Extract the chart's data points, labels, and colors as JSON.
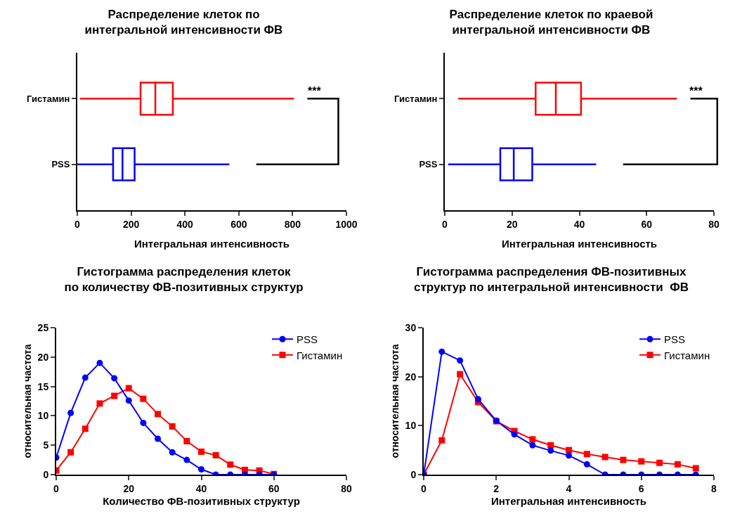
{
  "chart_data": [
    {
      "type": "box",
      "title": "Распределение клеток по интегральной интенсивности ФВ",
      "xlabel": "Интегральная интенсивность",
      "orientation": "horizontal",
      "categories": [
        "Гистамин",
        "PSS"
      ],
      "colors": [
        "#ff0000",
        "#0000ff"
      ],
      "boxes": [
        {
          "low": 10,
          "q1": 235,
          "median": 290,
          "q3": 355,
          "high": 805
        },
        {
          "low": 0,
          "q1": 133,
          "median": 168,
          "q3": 213,
          "high": 565
        }
      ],
      "xlim": [
        0,
        1000
      ],
      "xticks": [
        0,
        200,
        400,
        600,
        800,
        1000
      ],
      "grid": false,
      "legend": false,
      "annotations": [
        "***"
      ]
    },
    {
      "type": "box",
      "title": "Распределение клеток по краевой интегральной интенсивности ФВ",
      "xlabel": "Интегральная интенсивность",
      "orientation": "horizontal",
      "categories": [
        "Гистамин",
        "PSS"
      ],
      "colors": [
        "#ff0000",
        "#0000ff"
      ],
      "boxes": [
        {
          "low": 4,
          "q1": 27,
          "median": 33,
          "q3": 40.5,
          "high": 69
        },
        {
          "low": 1,
          "q1": 16.5,
          "median": 20.5,
          "q3": 26,
          "high": 45
        }
      ],
      "xlim": [
        0,
        80
      ],
      "xticks": [
        0,
        20,
        40,
        60,
        80
      ],
      "grid": false,
      "legend": false,
      "annotations": [
        "***"
      ]
    },
    {
      "type": "line",
      "title": "Гистограмма распределения клеток по количеству ФВ-позитивных структур",
      "xlabel": "Количество ФВ-позитивных структур",
      "ylabel": "относительная частота",
      "x": [
        0,
        4,
        8,
        12,
        16,
        20,
        24,
        28,
        32,
        36,
        40,
        44,
        48,
        52,
        56,
        60
      ],
      "series": [
        {
          "name": "PSS",
          "color": "#0000ff",
          "marker": "circle",
          "values": [
            2.9,
            10.5,
            16.5,
            19,
            16.4,
            12.6,
            8.8,
            6.1,
            3.8,
            2.5,
            0.9,
            0,
            0,
            0,
            0,
            0
          ]
        },
        {
          "name": "Гистамин",
          "color": "#ff0000",
          "marker": "square",
          "values": [
            0.7,
            3.8,
            7.8,
            12.1,
            13.4,
            14.7,
            12.9,
            10.3,
            8.2,
            5.7,
            3.9,
            3.3,
            1.7,
            0.8,
            0.7,
            0.1
          ]
        }
      ],
      "xlim": [
        0,
        80
      ],
      "xticks": [
        0,
        20,
        40,
        60,
        80
      ],
      "ylim": [
        0,
        25
      ],
      "yticks": [
        0,
        5,
        10,
        15,
        20,
        25
      ],
      "grid": false,
      "legend": "top right",
      "line_style": "solid"
    },
    {
      "type": "line",
      "title": "Гистограмма распределения ФВ-позитивных структур по интегральной интенсивности  ФВ",
      "xlabel": "Интегральная интенсивность",
      "ylabel": "относительная частота",
      "x": [
        0,
        0.5,
        1,
        1.5,
        2,
        2.5,
        3,
        3.5,
        4,
        4.5,
        5,
        5.5,
        6,
        6.5,
        7,
        7.5
      ],
      "series": [
        {
          "name": "PSS",
          "color": "#0000ff",
          "marker": "circle",
          "values": [
            0,
            25.1,
            23.3,
            15.4,
            11,
            8.2,
            6,
            4.9,
            3.9,
            2.1,
            0,
            0,
            0,
            0,
            0,
            0
          ]
        },
        {
          "name": "Гистамин",
          "color": "#ff0000",
          "marker": "square",
          "values": [
            0,
            7,
            20.5,
            14.8,
            10.9,
            8.9,
            7.2,
            6,
            5,
            4.2,
            3.6,
            3,
            2.7,
            2.4,
            2.1,
            1.3
          ]
        }
      ],
      "xlim": [
        0,
        8
      ],
      "xticks": [
        0,
        2,
        4,
        6,
        8
      ],
      "ylim": [
        0,
        30
      ],
      "yticks": [
        0,
        10,
        20,
        30
      ],
      "grid": false,
      "legend": "top right",
      "line_style": "solid"
    }
  ]
}
